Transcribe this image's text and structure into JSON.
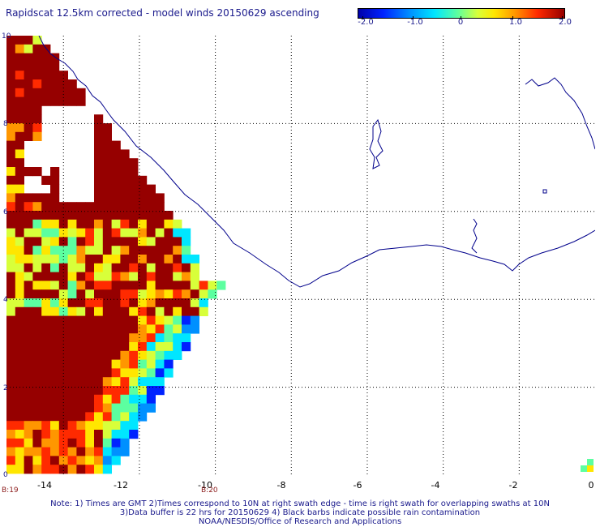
{
  "title": "Rapidscat 12.5km corrected - model winds 20150629 ascending",
  "colorbar": {
    "ticks": [
      {
        "value": -2.0,
        "label": "-2.0"
      },
      {
        "value": -1.0,
        "label": "-1.0"
      },
      {
        "value": 0,
        "label": "0"
      },
      {
        "value": 1.0,
        "label": "1.0"
      },
      {
        "value": 2.0,
        "label": "2.0"
      }
    ],
    "range": [
      -2.0,
      2.0
    ],
    "colors": [
      "#0000aa",
      "#0022ff",
      "#0090ff",
      "#00e6ff",
      "#5cffa0",
      "#d8ff3a",
      "#ffe600",
      "#ff9600",
      "#ff2a00",
      "#960000"
    ]
  },
  "map": {
    "lon_range": [
      -15.5,
      0
    ],
    "lat_range": [
      0,
      10
    ],
    "x_ticks": [
      "-14",
      "-12",
      "-10",
      "-8",
      "-6",
      "-4",
      "-2",
      "0"
    ],
    "y_ticks": [
      "10",
      "8",
      "6",
      "4",
      "2",
      "0"
    ],
    "grid": "dotted",
    "coastline_color": "#00008b"
  },
  "time_labels": {
    "left": "B:19",
    "right": "B:20"
  },
  "notes": {
    "line1": "Note: 1) Times are GMT 2)Times correspond to 10N at right swath edge - time is right swath for overlapping swaths at 10N",
    "line2": "3)Data buffer is 22 hrs for 20150629 4) Black barbs indicate possible rain contamination",
    "line3": "NOAA/NESDIS/Office of Research and Applications"
  }
}
